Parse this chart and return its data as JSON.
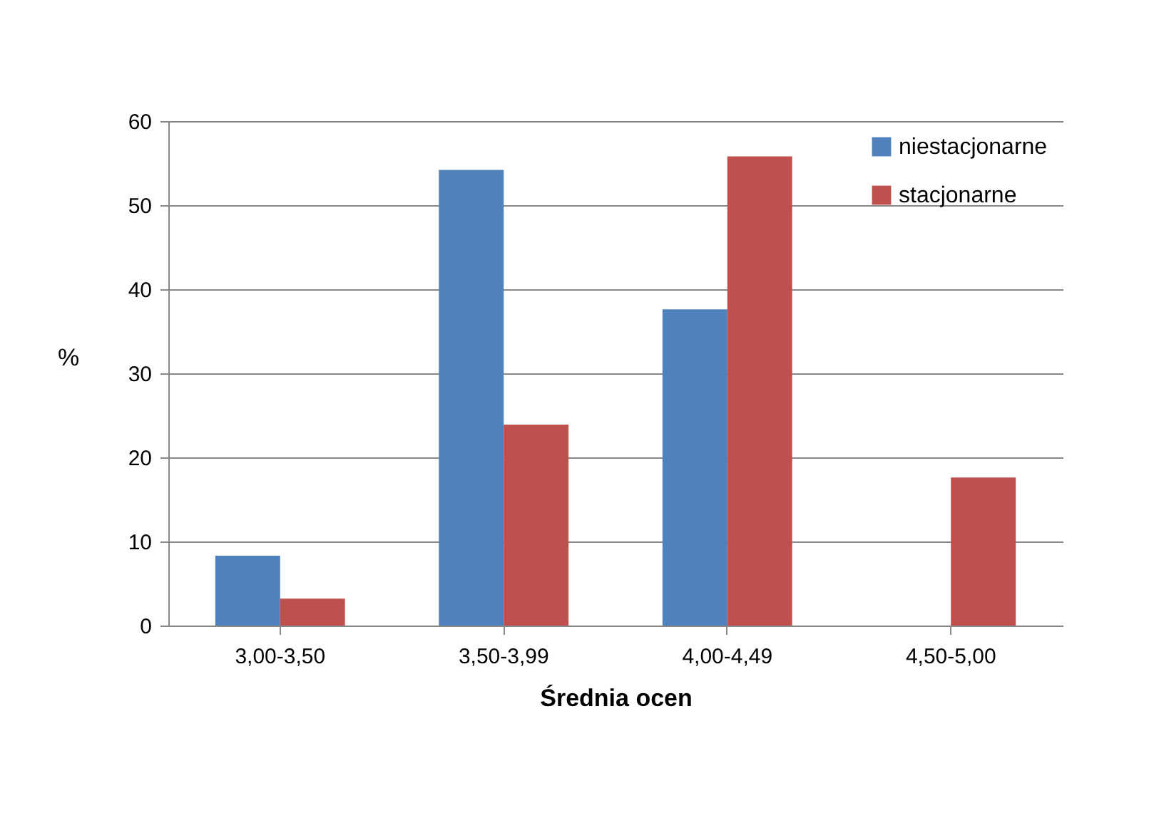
{
  "chart_data": {
    "type": "bar",
    "xlabel": "Średnia ocen",
    "ylabel": "%",
    "categories": [
      "3,00-3,50",
      "3,50-3,99",
      "4,00-4,49",
      "4,50-5,00"
    ],
    "series": [
      {
        "name": "niestacjonarne",
        "color": "#4f81bd",
        "values": [
          8.3,
          54.2,
          37.6,
          0
        ]
      },
      {
        "name": "stacjonarne",
        "color": "#c0504d",
        "values": [
          3.2,
          23.9,
          55.8,
          17.6
        ]
      }
    ],
    "ylim": [
      0,
      60
    ],
    "yticks": [
      0,
      10,
      20,
      30,
      40,
      50,
      60
    ],
    "grid": "y",
    "legend": "top right"
  }
}
